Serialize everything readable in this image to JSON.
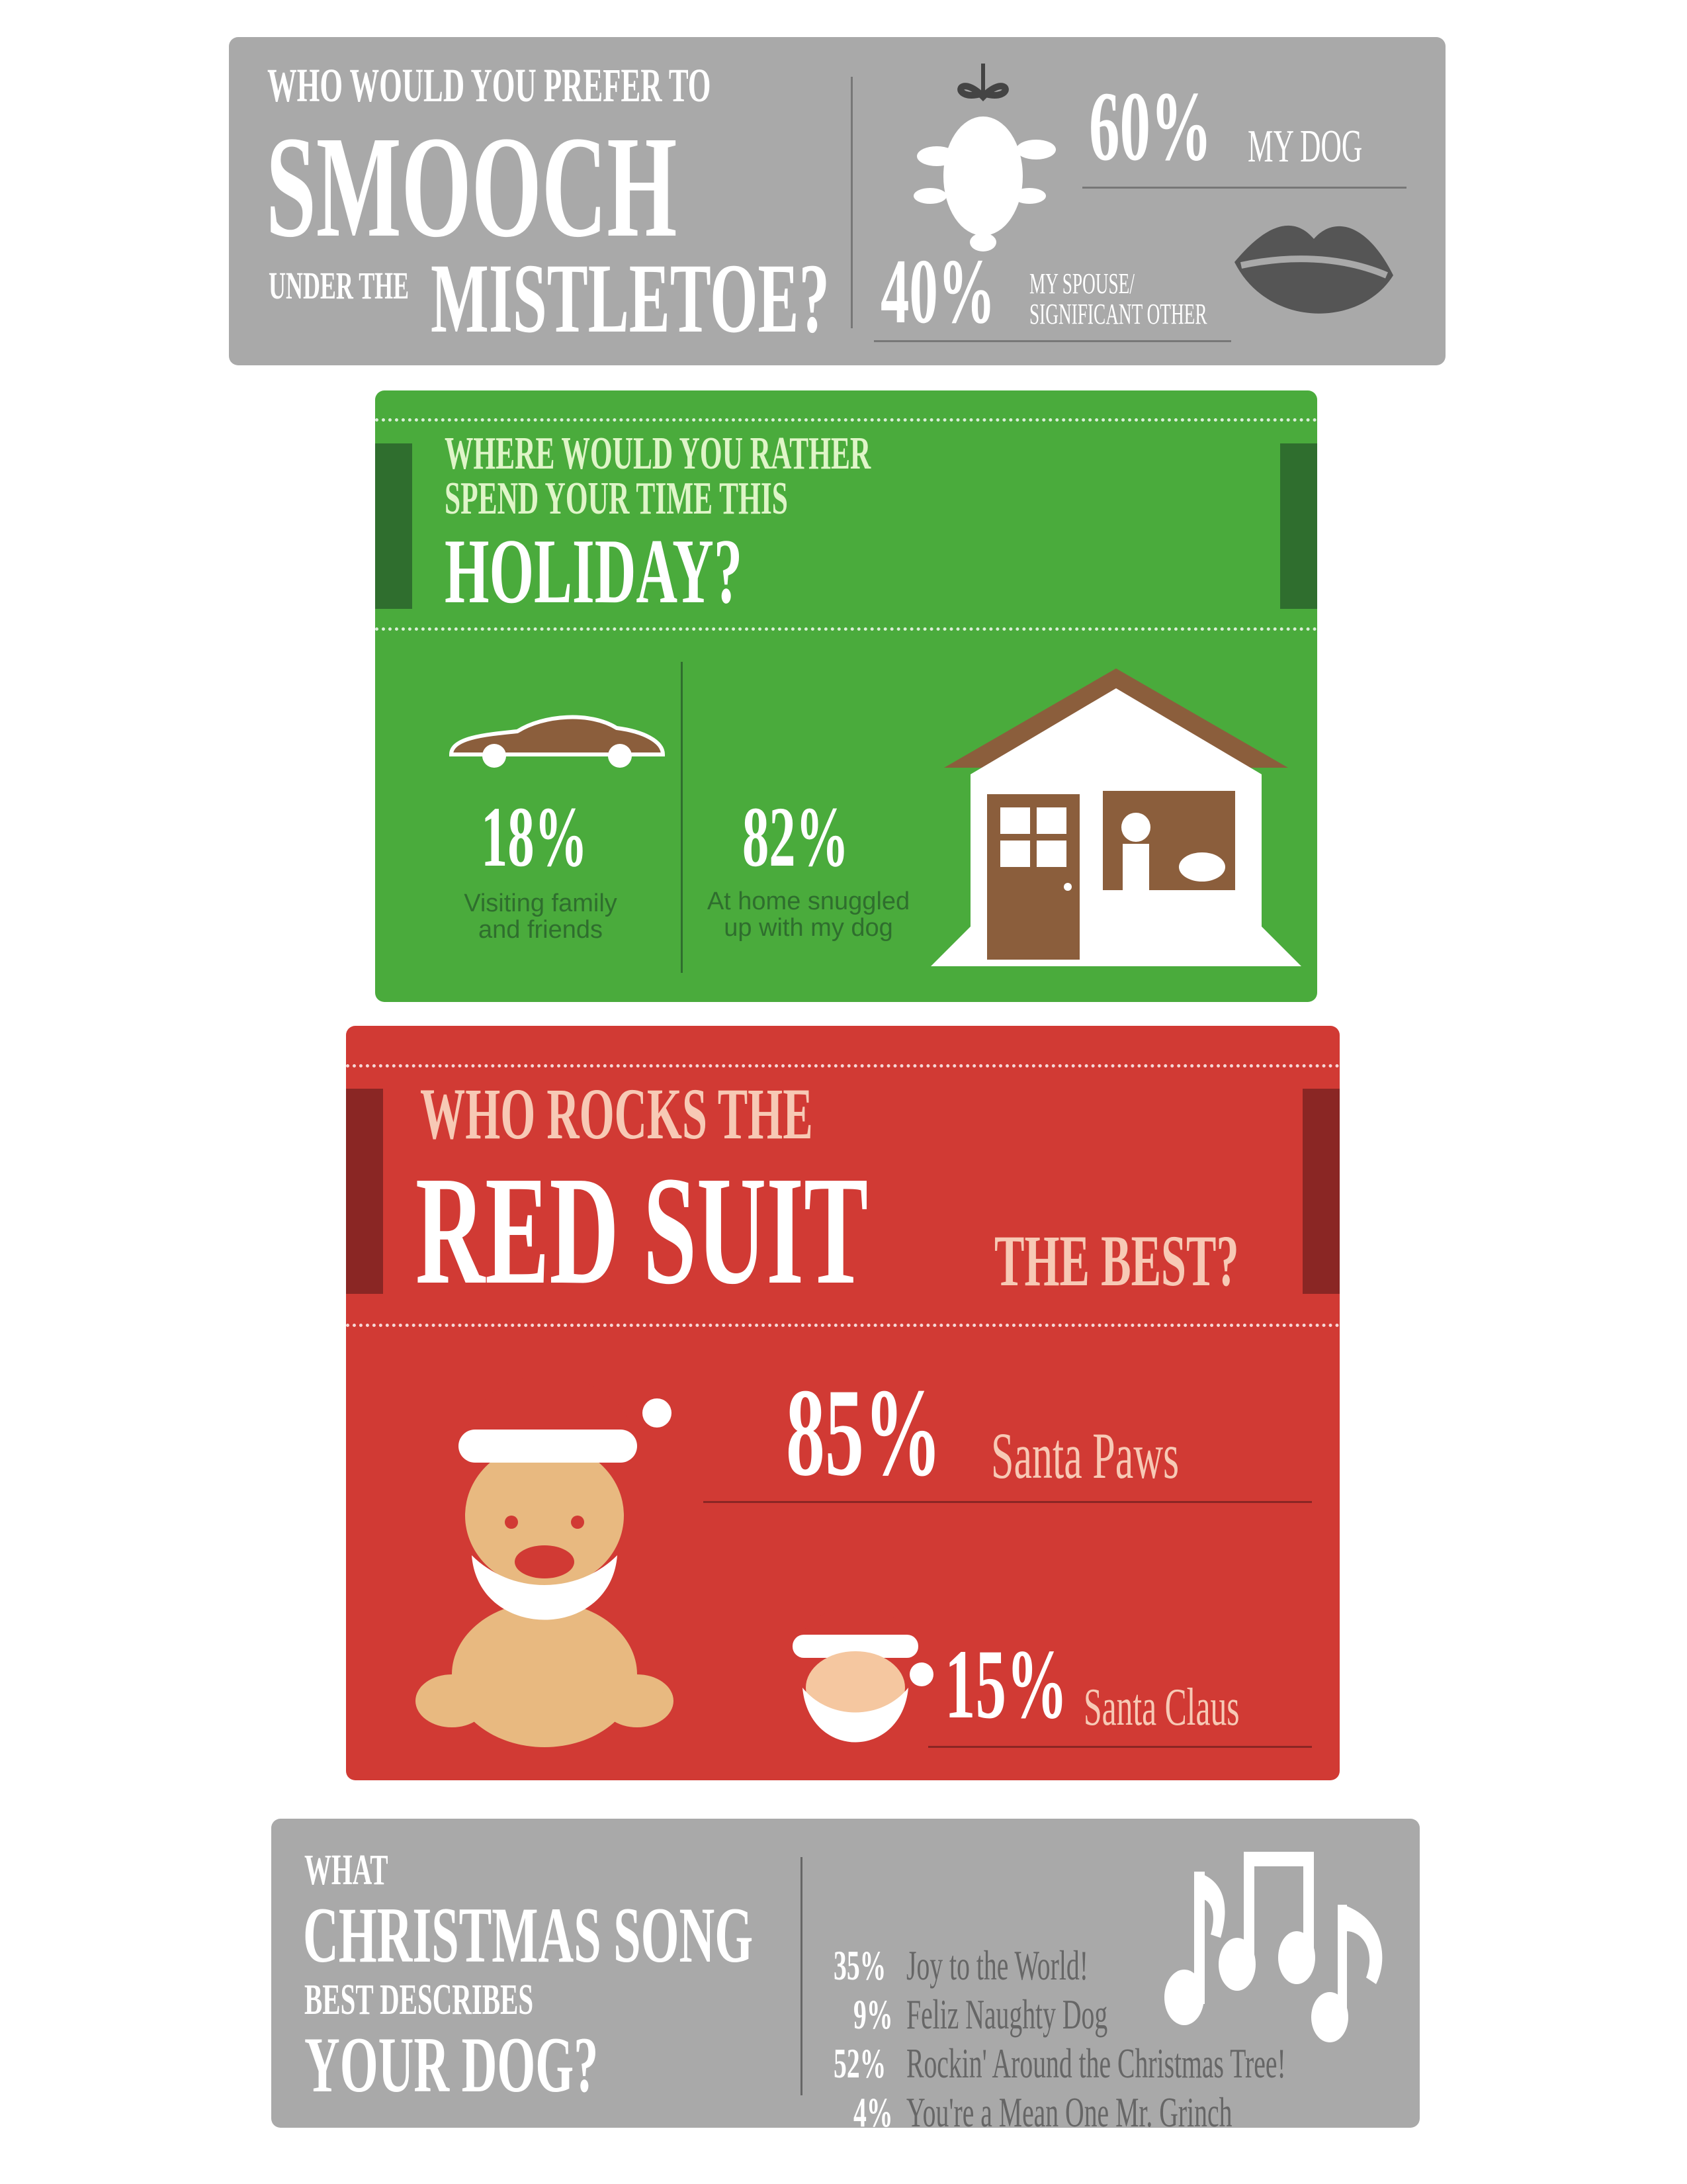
{
  "colors": {
    "gray": "#a9a9a9",
    "green": "#4aab3c",
    "dark_green": "#2f6e2e",
    "red": "#d13a34",
    "dark_red": "#8a2624",
    "brown": "#8b5e3c",
    "pink": "#f7c9b5",
    "light_green": "#dff5c8"
  },
  "smooch": {
    "line1": "WHO WOULD YOU PREFER TO",
    "line2": "SMOOCH",
    "line3a": "UNDER THE",
    "line3b": "MISTLETOE?",
    "options": [
      {
        "pct": "60%",
        "label": "MY DOG",
        "icon": "mistletoe-icon"
      },
      {
        "pct": "40%",
        "label1": "MY SPOUSE/",
        "label2": "SIGNIFICANT OTHER",
        "icon": "lips-icon"
      }
    ]
  },
  "holiday": {
    "line1": "WHERE WOULD YOU RATHER",
    "line2": "SPEND YOUR TIME THIS",
    "line3": "HOLIDAY?",
    "options": [
      {
        "pct": "18%",
        "label1": "Visiting family",
        "label2": "and friends",
        "icon": "car-icon"
      },
      {
        "pct": "82%",
        "label1": "At home snuggled",
        "label2": "up with my dog",
        "icon": "house-icon"
      }
    ]
  },
  "suit": {
    "line1": "WHO ROCKS THE",
    "line2": "RED SUIT",
    "line3": "THE BEST?",
    "options": [
      {
        "pct": "85%",
        "label": "Santa Paws",
        "icon": "santa-dog-icon"
      },
      {
        "pct": "15%",
        "label": "Santa Claus",
        "icon": "santa-claus-icon"
      }
    ]
  },
  "song": {
    "line1": "WHAT",
    "line2": "CHRISTMAS SONG",
    "line3": "BEST DESCRIBES",
    "line4": "YOUR DOG?",
    "items": [
      {
        "pct": "35%",
        "title": "Joy to the World!"
      },
      {
        "pct": "9%",
        "title": "Feliz Naughty Dog"
      },
      {
        "pct": "52%",
        "title": "Rockin' Around the Christmas Tree!"
      },
      {
        "pct": "4%",
        "title": "You're a Mean One Mr. Grinch"
      }
    ],
    "icon": "music-notes-icon"
  }
}
